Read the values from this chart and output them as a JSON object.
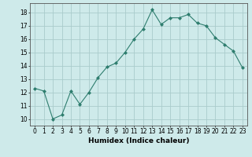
{
  "x": [
    0,
    1,
    2,
    3,
    4,
    5,
    6,
    7,
    8,
    9,
    10,
    11,
    12,
    13,
    14,
    15,
    16,
    17,
    18,
    19,
    20,
    21,
    22,
    23
  ],
  "y": [
    12.3,
    12.1,
    10.0,
    10.3,
    12.1,
    11.1,
    12.0,
    13.1,
    13.9,
    14.2,
    15.0,
    16.0,
    16.75,
    18.2,
    17.1,
    17.6,
    17.6,
    17.85,
    17.2,
    17.0,
    16.1,
    15.6,
    15.1,
    13.85
  ],
  "line_color": "#2e7d6e",
  "marker": "D",
  "marker_size": 2.0,
  "bg_color": "#ceeaea",
  "grid_color": "#aacccc",
  "xlabel": "Humidex (Indice chaleur)",
  "xlim": [
    -0.5,
    23.5
  ],
  "ylim": [
    9.5,
    18.7
  ],
  "yticks": [
    10,
    11,
    12,
    13,
    14,
    15,
    16,
    17,
    18
  ],
  "xticks": [
    0,
    1,
    2,
    3,
    4,
    5,
    6,
    7,
    8,
    9,
    10,
    11,
    12,
    13,
    14,
    15,
    16,
    17,
    18,
    19,
    20,
    21,
    22,
    23
  ],
  "xlabel_fontsize": 6.5,
  "tick_fontsize": 5.5
}
